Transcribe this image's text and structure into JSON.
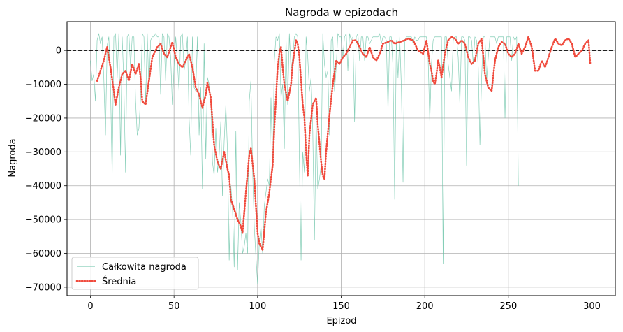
{
  "chart_data": {
    "type": "line",
    "title": "Nagroda w epizodach",
    "xlabel": "Epizod",
    "ylabel": "Nagroda",
    "xlim": [
      -14,
      314
    ],
    "ylim": [
      -72500,
      8500
    ],
    "xticks": [
      0,
      50,
      100,
      150,
      200,
      250,
      300
    ],
    "yticks": [
      0,
      -10000,
      -20000,
      -30000,
      -40000,
      -50000,
      -60000,
      -70000
    ],
    "grid": true,
    "legend_position": "lower-left",
    "reference_line": {
      "y": 0,
      "style": "dashed",
      "color": "#000000"
    },
    "series": [
      {
        "name": "Całkowita nagroda",
        "style": "solid-thin",
        "color": "#66c2a5",
        "x_start": 0,
        "values": [
          -3000,
          -9000,
          -7000,
          -15000,
          3000,
          5000,
          2000,
          4000,
          -8000,
          -25000,
          1500,
          4000,
          -10000,
          -37000,
          4000,
          5000,
          -8000,
          5000,
          -31000,
          4000,
          -10000,
          -36000,
          4000,
          5000,
          -5000,
          4000,
          4000,
          -15000,
          -25000,
          -23000,
          -14000,
          5000,
          4000,
          -16000,
          5000,
          -12000,
          3000,
          4000,
          4000,
          5000,
          4000,
          4000,
          -13000,
          5000,
          4000,
          -9000,
          5000,
          4000,
          -2000,
          -16000,
          -5000,
          4000,
          -3000,
          -12000,
          4000,
          5000,
          -6000,
          -3000,
          4000,
          -20000,
          -31000,
          4000,
          -11000,
          -12000,
          4000,
          -25000,
          -11000,
          -41000,
          2000,
          -32000,
          -8000,
          -10000,
          -14000,
          -33000,
          -37000,
          -23000,
          -36000,
          -31000,
          -21000,
          -43000,
          -27000,
          -16000,
          -30000,
          -62000,
          -40000,
          -47000,
          -64000,
          -24000,
          -65000,
          -45000,
          -51000,
          -60000,
          -58000,
          -54000,
          -60000,
          -15000,
          -9000,
          -35000,
          -52000,
          -61000,
          -69000,
          -57000,
          -52000,
          -60000,
          -46000,
          -42000,
          -38000,
          -40000,
          -14000,
          -35000,
          -3000,
          4000,
          3000,
          5000,
          -14000,
          -10000,
          -29000,
          4000,
          -16000,
          5000,
          -6000,
          -2000,
          4000,
          5000,
          4000,
          -32000,
          -62000,
          -30000,
          -36000,
          4000,
          -2000,
          -12000,
          -8000,
          -24000,
          -56000,
          -20000,
          -41000,
          -38000,
          -34000,
          5000,
          -4000,
          -8000,
          -6000,
          -25000,
          3000,
          4000,
          -12000,
          -5000,
          5000,
          4000,
          4000,
          -2000,
          4000,
          5000,
          -6000,
          5000,
          3000,
          4000,
          -21000,
          4000,
          5000,
          -3000,
          4000,
          4000,
          -3000,
          4000,
          4000,
          2000,
          3000,
          4000,
          4000,
          4000,
          4000,
          5000,
          2000,
          4000,
          4000,
          3000,
          -18000,
          4000,
          4000,
          -5000,
          -44000,
          3000,
          -8000,
          4000,
          -11000,
          -39000,
          3000,
          4000,
          4000,
          4000,
          4000,
          2000,
          4000,
          3000,
          3000,
          4000,
          4000,
          4000,
          4000,
          4000,
          -2000,
          -21000,
          -4000,
          3000,
          4000,
          4000,
          4000,
          4000,
          4000,
          -63000,
          4000,
          4000,
          -4000,
          -8000,
          -12000,
          3000,
          4000,
          4000,
          -2000,
          -16000,
          4000,
          4000,
          3000,
          -34000,
          4000,
          4000,
          3000,
          -4000,
          4000,
          3000,
          -5000,
          -28000,
          -8000,
          4000,
          4000,
          -9000,
          -2000,
          4000,
          4000,
          4000,
          4000,
          2000,
          4000,
          4000,
          4000,
          4000,
          -20000,
          4000,
          4000,
          4000,
          -3000,
          4000,
          3000,
          4000,
          -40000
        ],
        "values_note": ""
      },
      {
        "name": "Średnia",
        "style": "dotted",
        "color": "#f04a3c",
        "x_start": 4,
        "points": [
          [
            4,
            -9000
          ],
          [
            6,
            -6000
          ],
          [
            8,
            -3000
          ],
          [
            10,
            1000
          ],
          [
            12,
            -5000
          ],
          [
            14,
            -12000
          ],
          [
            15,
            -16000
          ],
          [
            17,
            -11000
          ],
          [
            19,
            -7000
          ],
          [
            21,
            -6000
          ],
          [
            23,
            -9000
          ],
          [
            25,
            -4000
          ],
          [
            27,
            -7000
          ],
          [
            29,
            -4000
          ],
          [
            30,
            -8000
          ],
          [
            31,
            -15000
          ],
          [
            33,
            -16000
          ],
          [
            35,
            -9000
          ],
          [
            37,
            -2000
          ],
          [
            40,
            1000
          ],
          [
            42,
            2000
          ],
          [
            44,
            -1000
          ],
          [
            46,
            -2000
          ],
          [
            48,
            1000
          ],
          [
            49,
            2500
          ],
          [
            51,
            -2000
          ],
          [
            53,
            -4000
          ],
          [
            55,
            -5000
          ],
          [
            57,
            -3000
          ],
          [
            59,
            -1000
          ],
          [
            61,
            -5000
          ],
          [
            63,
            -11000
          ],
          [
            65,
            -13000
          ],
          [
            67,
            -17000
          ],
          [
            69,
            -13000
          ],
          [
            70,
            -9500
          ],
          [
            72,
            -14000
          ],
          [
            74,
            -28000
          ],
          [
            76,
            -33000
          ],
          [
            78,
            -35000
          ],
          [
            80,
            -30000
          ],
          [
            82,
            -35000
          ],
          [
            83,
            -37000
          ],
          [
            84,
            -44000
          ],
          [
            86,
            -47000
          ],
          [
            88,
            -50000
          ],
          [
            90,
            -52000
          ],
          [
            91,
            -54000
          ],
          [
            93,
            -42000
          ],
          [
            95,
            -31000
          ],
          [
            96,
            -29000
          ],
          [
            98,
            -38000
          ],
          [
            100,
            -54000
          ],
          [
            101,
            -57000
          ],
          [
            103,
            -59000
          ],
          [
            105,
            -48000
          ],
          [
            107,
            -42000
          ],
          [
            109,
            -34000
          ],
          [
            110,
            -23000
          ],
          [
            112,
            -5000
          ],
          [
            113,
            -1000
          ],
          [
            114,
            1000
          ],
          [
            115,
            -5000
          ],
          [
            116,
            -10000
          ],
          [
            118,
            -15000
          ],
          [
            120,
            -10000
          ],
          [
            121,
            -4000
          ],
          [
            123,
            3000
          ],
          [
            124,
            2000
          ],
          [
            125,
            -2000
          ],
          [
            127,
            -16000
          ],
          [
            128,
            -20000
          ],
          [
            129,
            -30000
          ],
          [
            130,
            -37000
          ],
          [
            131,
            -25000
          ],
          [
            133,
            -16000
          ],
          [
            135,
            -14000
          ],
          [
            136,
            -22000
          ],
          [
            138,
            -33000
          ],
          [
            139,
            -37000
          ],
          [
            140,
            -38000
          ],
          [
            141,
            -30000
          ],
          [
            143,
            -19000
          ],
          [
            145,
            -10000
          ],
          [
            147,
            -3000
          ],
          [
            149,
            -4000
          ],
          [
            151,
            -2000
          ],
          [
            153,
            -1000
          ],
          [
            155,
            1000
          ],
          [
            157,
            3000
          ],
          [
            159,
            3000
          ],
          [
            161,
            1000
          ],
          [
            163,
            -1000
          ],
          [
            165,
            -2000
          ],
          [
            167,
            1000
          ],
          [
            169,
            -2000
          ],
          [
            171,
            -3000
          ],
          [
            173,
            -1000
          ],
          [
            175,
            2000
          ],
          [
            178,
            2500
          ],
          [
            180,
            3000
          ],
          [
            182,
            2000
          ],
          [
            185,
            2500
          ],
          [
            188,
            3000
          ],
          [
            190,
            3500
          ],
          [
            193,
            3000
          ],
          [
            196,
            0
          ],
          [
            199,
            -1000
          ],
          [
            201,
            3000
          ],
          [
            203,
            -4000
          ],
          [
            204,
            -6000
          ],
          [
            205,
            -9000
          ],
          [
            206,
            -10000
          ],
          [
            207,
            -7000
          ],
          [
            208,
            -3000
          ],
          [
            209,
            -5000
          ],
          [
            210,
            -8000
          ],
          [
            212,
            -1000
          ],
          [
            214,
            3000
          ],
          [
            216,
            4000
          ],
          [
            218,
            3500
          ],
          [
            220,
            2000
          ],
          [
            222,
            3000
          ],
          [
            224,
            2000
          ],
          [
            226,
            -2000
          ],
          [
            228,
            -4000
          ],
          [
            230,
            -3000
          ],
          [
            232,
            2000
          ],
          [
            234,
            3500
          ],
          [
            236,
            -7000
          ],
          [
            238,
            -11000
          ],
          [
            240,
            -12000
          ],
          [
            242,
            -3000
          ],
          [
            244,
            1000
          ],
          [
            246,
            2500
          ],
          [
            248,
            2000
          ],
          [
            250,
            -1000
          ],
          [
            252,
            -2000
          ],
          [
            254,
            -1000
          ],
          [
            256,
            2000
          ],
          [
            258,
            -1000
          ],
          [
            260,
            1000
          ],
          [
            262,
            4000
          ],
          [
            264,
            1000
          ],
          [
            266,
            -6000
          ],
          [
            268,
            -6000
          ],
          [
            270,
            -3000
          ],
          [
            272,
            -5000
          ],
          [
            274,
            -2000
          ],
          [
            276,
            1000
          ],
          [
            278,
            3500
          ],
          [
            280,
            2000
          ],
          [
            282,
            1500
          ],
          [
            284,
            3000
          ],
          [
            286,
            3500
          ],
          [
            288,
            2000
          ],
          [
            290,
            -2000
          ],
          [
            292,
            -1000
          ],
          [
            294,
            0
          ],
          [
            296,
            2000
          ],
          [
            298,
            3000
          ],
          [
            299,
            -4000
          ]
        ]
      }
    ]
  }
}
